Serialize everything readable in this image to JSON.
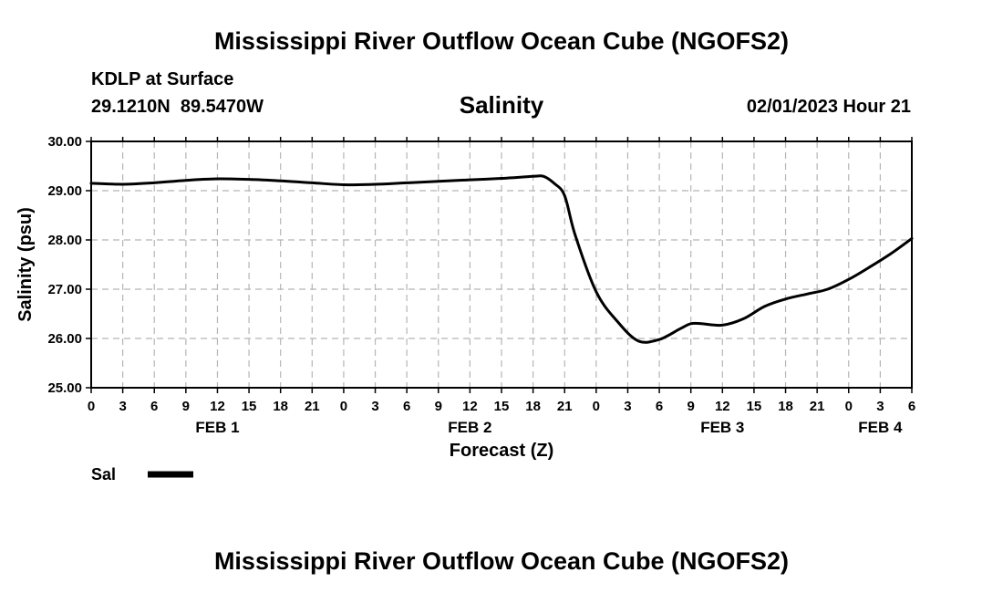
{
  "header": {
    "title": "Mississippi River Outflow Ocean Cube (NGOFS2)",
    "station": "KDLP at Surface",
    "coords": "29.1210N  89.5470W",
    "datetime": "02/01/2023 Hour 21",
    "footer_title": "Mississippi River Outflow Ocean Cube (NGOFS2)"
  },
  "chart_data": {
    "type": "line",
    "title": "Salinity",
    "xlabel": "Forecast (Z)",
    "ylabel": "Salinity (psu)",
    "ylim": [
      25,
      30
    ],
    "yticks": [
      "25.00",
      "26.00",
      "27.00",
      "28.00",
      "29.00",
      "30.00"
    ],
    "xlim": [
      0,
      78
    ],
    "xticks": [
      "0",
      "3",
      "6",
      "9",
      "12",
      "15",
      "18",
      "21",
      "0",
      "3",
      "6",
      "9",
      "12",
      "15",
      "18",
      "21",
      "0",
      "3",
      "6",
      "9",
      "12",
      "15",
      "18",
      "21",
      "0",
      "3",
      "6"
    ],
    "day_labels": [
      {
        "label": "FEB 1",
        "hour": 12
      },
      {
        "label": "FEB 2",
        "hour": 36
      },
      {
        "label": "FEB 3",
        "hour": 60
      },
      {
        "label": "FEB 4",
        "hour": 75
      }
    ],
    "grid": true,
    "legend": [
      {
        "name": "Sal",
        "color": "#000000"
      }
    ],
    "series": [
      {
        "name": "Sal",
        "x": [
          0,
          3,
          6,
          9,
          12,
          15,
          18,
          21,
          24,
          27,
          30,
          33,
          36,
          39,
          42,
          43,
          44,
          45,
          46,
          48,
          50,
          52,
          54,
          56,
          57,
          58,
          60,
          62,
          64,
          66,
          68,
          70,
          72,
          74,
          76,
          78
        ],
        "y": [
          29.15,
          29.13,
          29.16,
          29.21,
          29.24,
          29.23,
          29.2,
          29.16,
          29.12,
          29.13,
          29.16,
          29.19,
          29.22,
          29.25,
          29.29,
          29.29,
          29.15,
          28.9,
          28.1,
          26.95,
          26.35,
          25.95,
          25.98,
          26.2,
          26.3,
          26.3,
          26.27,
          26.4,
          26.65,
          26.8,
          26.9,
          27.0,
          27.2,
          27.45,
          27.72,
          28.03
        ]
      }
    ]
  }
}
